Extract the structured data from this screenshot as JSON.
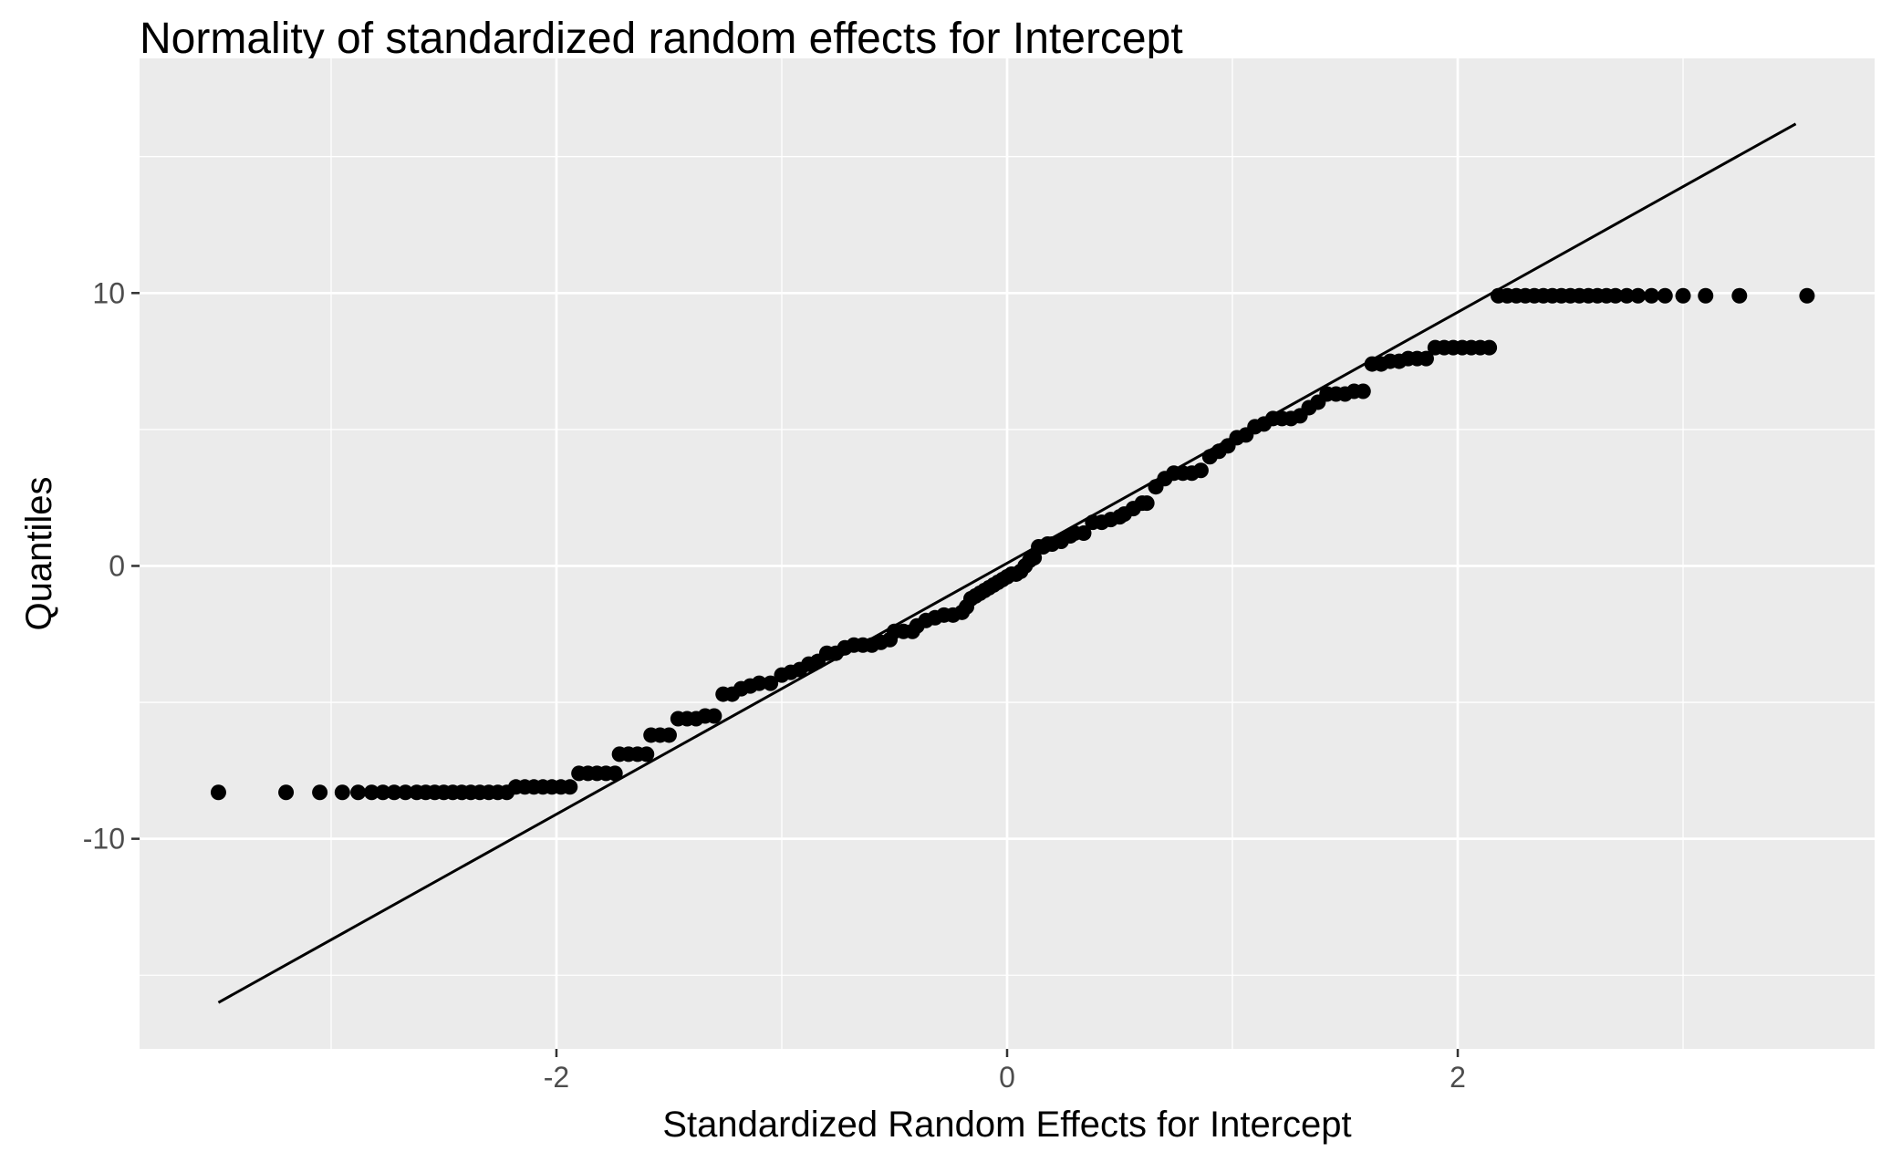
{
  "chart_data": {
    "type": "scatter",
    "title": "Normality of standardized random effects for Intercept",
    "xlabel": "Standardized Random Effects for Intercept",
    "ylabel": "Quantiles",
    "xlim": [
      -3.85,
      3.85
    ],
    "ylim": [
      -17.7,
      18.6
    ],
    "x_ticks": [
      -2,
      0,
      2
    ],
    "x_tick_labels": [
      "-2",
      "0",
      "2"
    ],
    "x_minor_ticks": [
      -3,
      -1,
      1,
      3
    ],
    "y_ticks": [
      -10,
      0,
      10
    ],
    "y_tick_labels": [
      "-10",
      "0",
      "10"
    ],
    "y_minor_ticks": [
      -15,
      -5,
      5,
      15
    ],
    "grid": true,
    "legend": "none",
    "panel_background": "#ebebeb",
    "grid_color": "#ffffff",
    "point_color": "#000000",
    "line_color": "#000000",
    "reference_line": {
      "x": [
        -3.5,
        3.5
      ],
      "y": [
        -16.0,
        16.2
      ]
    },
    "series": [
      {
        "points": [
          [
            -3.5,
            -8.3
          ],
          [
            -3.2,
            -8.3
          ],
          [
            -3.05,
            -8.3
          ],
          [
            -2.95,
            -8.3
          ],
          [
            -2.88,
            -8.3
          ],
          [
            -2.82,
            -8.3
          ],
          [
            -2.77,
            -8.3
          ],
          [
            -2.72,
            -8.3
          ],
          [
            -2.67,
            -8.3
          ],
          [
            -2.62,
            -8.3
          ],
          [
            -2.58,
            -8.3
          ],
          [
            -2.54,
            -8.3
          ],
          [
            -2.5,
            -8.3
          ],
          [
            -2.46,
            -8.3
          ],
          [
            -2.42,
            -8.3
          ],
          [
            -2.38,
            -8.3
          ],
          [
            -2.34,
            -8.3
          ],
          [
            -2.3,
            -8.3
          ],
          [
            -2.26,
            -8.3
          ],
          [
            -2.22,
            -8.3
          ],
          [
            -2.18,
            -8.1
          ],
          [
            -2.14,
            -8.1
          ],
          [
            -2.1,
            -8.1
          ],
          [
            -2.06,
            -8.1
          ],
          [
            -2.02,
            -8.1
          ],
          [
            -1.98,
            -8.1
          ],
          [
            -1.94,
            -8.1
          ],
          [
            -1.9,
            -7.6
          ],
          [
            -1.86,
            -7.6
          ],
          [
            -1.82,
            -7.6
          ],
          [
            -1.78,
            -7.6
          ],
          [
            -1.74,
            -7.6
          ],
          [
            -1.72,
            -6.9
          ],
          [
            -1.68,
            -6.9
          ],
          [
            -1.64,
            -6.9
          ],
          [
            -1.6,
            -6.9
          ],
          [
            -1.58,
            -6.2
          ],
          [
            -1.54,
            -6.2
          ],
          [
            -1.5,
            -6.2
          ],
          [
            -1.46,
            -5.6
          ],
          [
            -1.42,
            -5.6
          ],
          [
            -1.38,
            -5.6
          ],
          [
            -1.34,
            -5.5
          ],
          [
            -1.3,
            -5.5
          ],
          [
            -1.26,
            -4.7
          ],
          [
            -1.22,
            -4.7
          ],
          [
            -1.18,
            -4.5
          ],
          [
            -1.14,
            -4.4
          ],
          [
            -1.1,
            -4.3
          ],
          [
            -1.05,
            -4.3
          ],
          [
            -1.0,
            -4.0
          ],
          [
            -0.96,
            -3.9
          ],
          [
            -0.92,
            -3.8
          ],
          [
            -0.88,
            -3.6
          ],
          [
            -0.84,
            -3.5
          ],
          [
            -0.8,
            -3.2
          ],
          [
            -0.76,
            -3.2
          ],
          [
            -0.72,
            -3.0
          ],
          [
            -0.68,
            -2.9
          ],
          [
            -0.64,
            -2.9
          ],
          [
            -0.6,
            -2.9
          ],
          [
            -0.56,
            -2.8
          ],
          [
            -0.52,
            -2.7
          ],
          [
            -0.5,
            -2.4
          ],
          [
            -0.46,
            -2.4
          ],
          [
            -0.42,
            -2.4
          ],
          [
            -0.4,
            -2.2
          ],
          [
            -0.36,
            -2.0
          ],
          [
            -0.32,
            -1.9
          ],
          [
            -0.28,
            -1.8
          ],
          [
            -0.24,
            -1.8
          ],
          [
            -0.2,
            -1.7
          ],
          [
            -0.18,
            -1.5
          ],
          [
            -0.16,
            -1.2
          ],
          [
            -0.14,
            -1.1
          ],
          [
            -0.12,
            -1.0
          ],
          [
            -0.1,
            -0.9
          ],
          [
            -0.08,
            -0.8
          ],
          [
            -0.06,
            -0.7
          ],
          [
            -0.04,
            -0.6
          ],
          [
            -0.02,
            -0.5
          ],
          [
            0.0,
            -0.4
          ],
          [
            0.02,
            -0.3
          ],
          [
            0.04,
            -0.3
          ],
          [
            0.06,
            -0.2
          ],
          [
            0.08,
            0.0
          ],
          [
            0.1,
            0.2
          ],
          [
            0.12,
            0.3
          ],
          [
            0.14,
            0.7
          ],
          [
            0.16,
            0.7
          ],
          [
            0.18,
            0.8
          ],
          [
            0.2,
            0.8
          ],
          [
            0.24,
            0.9
          ],
          [
            0.28,
            1.1
          ],
          [
            0.3,
            1.2
          ],
          [
            0.34,
            1.2
          ],
          [
            0.38,
            1.6
          ],
          [
            0.42,
            1.6
          ],
          [
            0.46,
            1.7
          ],
          [
            0.5,
            1.8
          ],
          [
            0.52,
            1.9
          ],
          [
            0.56,
            2.1
          ],
          [
            0.6,
            2.3
          ],
          [
            0.62,
            2.3
          ],
          [
            0.66,
            2.9
          ],
          [
            0.7,
            3.2
          ],
          [
            0.74,
            3.4
          ],
          [
            0.78,
            3.4
          ],
          [
            0.82,
            3.4
          ],
          [
            0.86,
            3.5
          ],
          [
            0.9,
            4.0
          ],
          [
            0.94,
            4.2
          ],
          [
            0.98,
            4.4
          ],
          [
            1.02,
            4.7
          ],
          [
            1.06,
            4.8
          ],
          [
            1.1,
            5.1
          ],
          [
            1.14,
            5.2
          ],
          [
            1.18,
            5.4
          ],
          [
            1.22,
            5.4
          ],
          [
            1.26,
            5.4
          ],
          [
            1.3,
            5.5
          ],
          [
            1.34,
            5.8
          ],
          [
            1.38,
            6.0
          ],
          [
            1.42,
            6.3
          ],
          [
            1.46,
            6.3
          ],
          [
            1.5,
            6.3
          ],
          [
            1.54,
            6.4
          ],
          [
            1.58,
            6.4
          ],
          [
            1.62,
            7.4
          ],
          [
            1.66,
            7.4
          ],
          [
            1.7,
            7.5
          ],
          [
            1.74,
            7.5
          ],
          [
            1.78,
            7.6
          ],
          [
            1.82,
            7.6
          ],
          [
            1.86,
            7.6
          ],
          [
            1.9,
            8.0
          ],
          [
            1.94,
            8.0
          ],
          [
            1.98,
            8.0
          ],
          [
            2.02,
            8.0
          ],
          [
            2.06,
            8.0
          ],
          [
            2.1,
            8.0
          ],
          [
            2.14,
            8.0
          ],
          [
            2.18,
            9.9
          ],
          [
            2.22,
            9.9
          ],
          [
            2.26,
            9.9
          ],
          [
            2.3,
            9.9
          ],
          [
            2.34,
            9.9
          ],
          [
            2.38,
            9.9
          ],
          [
            2.42,
            9.9
          ],
          [
            2.46,
            9.9
          ],
          [
            2.5,
            9.9
          ],
          [
            2.54,
            9.9
          ],
          [
            2.58,
            9.9
          ],
          [
            2.62,
            9.9
          ],
          [
            2.66,
            9.9
          ],
          [
            2.7,
            9.9
          ],
          [
            2.75,
            9.9
          ],
          [
            2.8,
            9.9
          ],
          [
            2.86,
            9.9
          ],
          [
            2.92,
            9.9
          ],
          [
            3.0,
            9.9
          ],
          [
            3.1,
            9.9
          ],
          [
            3.25,
            9.9
          ],
          [
            3.55,
            9.9
          ]
        ]
      }
    ]
  }
}
